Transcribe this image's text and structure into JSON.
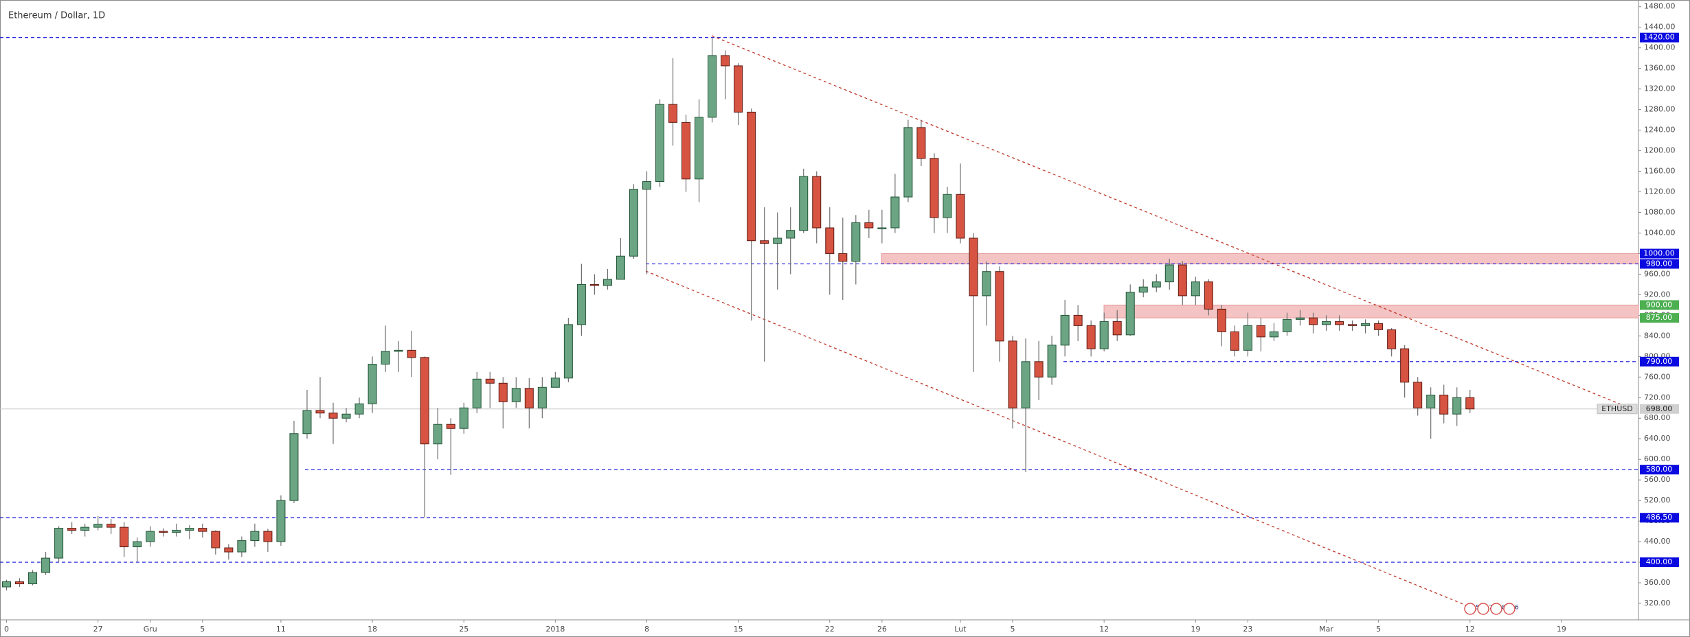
{
  "chart_data": {
    "type": "candlestick",
    "title": "Ethereum / Dollar, 1D",
    "categories": [
      "0",
      null,
      null,
      null,
      null,
      null,
      null,
      "27",
      null,
      null,
      null,
      "Gru",
      null,
      null,
      null,
      "5",
      null,
      null,
      null,
      null,
      null,
      "11",
      null,
      null,
      null,
      null,
      null,
      null,
      "18",
      null,
      null,
      null,
      null,
      null,
      null,
      "25",
      null,
      null,
      null,
      null,
      null,
      null,
      "2018",
      null,
      null,
      null,
      null,
      null,
      null,
      "8",
      null,
      null,
      null,
      null,
      null,
      null,
      "15",
      null,
      null,
      null,
      null,
      null,
      null,
      "22",
      null,
      null,
      null,
      "26",
      null,
      null,
      null,
      null,
      null,
      "Lut",
      null,
      null,
      null,
      "5",
      null,
      null,
      null,
      null,
      null,
      null,
      "12",
      null,
      null,
      null,
      null,
      null,
      null,
      "19",
      null,
      null,
      null,
      "23",
      null,
      null,
      null,
      null,
      null,
      "Mar",
      null,
      null,
      null,
      "5",
      null,
      null,
      null,
      null,
      null,
      null,
      "12",
      null,
      null,
      null,
      null,
      null,
      null,
      "19"
    ],
    "open": [
      352,
      362,
      358,
      380,
      408,
      466,
      462,
      468,
      474,
      468,
      430,
      440,
      460,
      458,
      462,
      466,
      460,
      428,
      420,
      442,
      460,
      440,
      520,
      650,
      695,
      690,
      680,
      688,
      708,
      785,
      810,
      812,
      798,
      630,
      668,
      660,
      700,
      756,
      748,
      712,
      738,
      700,
      740,
      758,
      862,
      940,
      938,
      950,
      995,
      1125,
      1140,
      1290,
      1255,
      1145,
      1265,
      1385,
      1365,
      1275,
      1025,
      1020,
      1030,
      1045,
      1150,
      1050,
      1000,
      985,
      1060,
      1050,
      1050,
      1110,
      1245,
      1185,
      1070,
      1115,
      1030,
      918,
      965,
      830,
      700,
      790,
      760,
      822,
      880,
      860,
      815,
      868,
      842,
      925,
      935,
      945,
      978,
      918,
      945,
      892,
      848,
      812,
      860,
      838,
      848,
      872,
      875,
      862,
      868,
      862,
      860,
      864,
      852,
      815,
      750,
      700,
      725,
      688,
      720,
      null,
      null,
      null,
      null,
      null,
      null,
      null
    ],
    "high": [
      366,
      369,
      385,
      420,
      470,
      478,
      475,
      490,
      484,
      478,
      448,
      470,
      466,
      475,
      472,
      475,
      462,
      435,
      450,
      475,
      465,
      530,
      675,
      735,
      760,
      710,
      700,
      720,
      800,
      860,
      830,
      850,
      800,
      700,
      680,
      710,
      770,
      770,
      760,
      760,
      758,
      760,
      770,
      875,
      980,
      960,
      970,
      1030,
      1135,
      1160,
      1300,
      1380,
      1270,
      1300,
      1420,
      1395,
      1370,
      1282,
      1090,
      1080,
      1090,
      1165,
      1160,
      1090,
      1070,
      1075,
      1085,
      1085,
      1155,
      1260,
      1260,
      1195,
      1130,
      1175,
      1040,
      985,
      975,
      840,
      835,
      830,
      840,
      910,
      900,
      870,
      885,
      890,
      940,
      950,
      960,
      990,
      985,
      955,
      950,
      900,
      860,
      885,
      875,
      865,
      885,
      890,
      885,
      880,
      880,
      870,
      872,
      870,
      855,
      822,
      760,
      740,
      745,
      740,
      735,
      null,
      null,
      null,
      null,
      null,
      null,
      null
    ],
    "low": [
      345,
      352,
      355,
      375,
      400,
      455,
      450,
      462,
      455,
      410,
      400,
      430,
      450,
      450,
      445,
      448,
      415,
      405,
      410,
      430,
      420,
      432,
      515,
      640,
      680,
      630,
      672,
      680,
      690,
      770,
      770,
      760,
      487,
      600,
      570,
      650,
      690,
      700,
      660,
      700,
      660,
      680,
      740,
      750,
      840,
      920,
      930,
      960,
      990,
      960,
      1130,
      1210,
      1120,
      1100,
      1255,
      1300,
      1250,
      870,
      790,
      930,
      960,
      1040,
      1020,
      920,
      910,
      940,
      1030,
      1020,
      1040,
      1100,
      1170,
      1040,
      1040,
      1020,
      770,
      860,
      790,
      660,
      575,
      715,
      745,
      800,
      830,
      800,
      810,
      830,
      840,
      915,
      925,
      930,
      900,
      900,
      880,
      820,
      800,
      800,
      810,
      830,
      840,
      860,
      845,
      850,
      850,
      850,
      845,
      840,
      800,
      720,
      685,
      640,
      670,
      665,
      690,
      null,
      null,
      null,
      null,
      null,
      null,
      null
    ],
    "close": [
      362,
      358,
      380,
      408,
      466,
      462,
      468,
      474,
      468,
      430,
      440,
      460,
      458,
      462,
      466,
      460,
      428,
      420,
      442,
      460,
      440,
      520,
      650,
      695,
      690,
      680,
      688,
      708,
      785,
      810,
      812,
      798,
      630,
      668,
      660,
      700,
      756,
      748,
      712,
      738,
      700,
      740,
      758,
      862,
      940,
      938,
      950,
      995,
      1125,
      1140,
      1290,
      1255,
      1145,
      1265,
      1385,
      1365,
      1275,
      1025,
      1020,
      1030,
      1045,
      1150,
      1050,
      1000,
      985,
      1060,
      1050,
      1050,
      1110,
      1245,
      1185,
      1070,
      1115,
      1030,
      918,
      965,
      830,
      700,
      790,
      760,
      822,
      880,
      860,
      815,
      868,
      842,
      925,
      935,
      945,
      978,
      918,
      945,
      892,
      848,
      812,
      860,
      838,
      848,
      872,
      875,
      862,
      868,
      862,
      860,
      864,
      852,
      815,
      750,
      700,
      725,
      688,
      720,
      698,
      null,
      null,
      null,
      null,
      null,
      null,
      null
    ],
    "up_color": "#6ba583",
    "down_color": "#d75442",
    "ylim": [
      288,
      1493
    ],
    "yticks": [
      {
        "value": 320,
        "label": "320.00"
      },
      {
        "value": 360,
        "label": "360.00"
      },
      {
        "value": 400,
        "label": "400.00"
      },
      {
        "value": 440,
        "label": "440.00"
      },
      {
        "value": 480,
        "label": "480.00"
      },
      {
        "value": 520,
        "label": "520.00"
      },
      {
        "value": 560,
        "label": "560.00"
      },
      {
        "value": 600,
        "label": "600.00"
      },
      {
        "value": 640,
        "label": "640.00"
      },
      {
        "value": 680,
        "label": "680.00"
      },
      {
        "value": 720,
        "label": "720.00"
      },
      {
        "value": 760,
        "label": "760.00"
      },
      {
        "value": 800,
        "label": "800.00"
      },
      {
        "value": 840,
        "label": "840.00"
      },
      {
        "value": 880,
        "label": "880.00"
      },
      {
        "value": 920,
        "label": "920.00"
      },
      {
        "value": 960,
        "label": "960.00"
      },
      {
        "value": 1000,
        "label": "1000.00"
      },
      {
        "value": 1040,
        "label": "1040.00"
      },
      {
        "value": 1080,
        "label": "1080.00"
      },
      {
        "value": 1120,
        "label": "1120.00"
      },
      {
        "value": 1160,
        "label": "1160.00"
      },
      {
        "value": 1200,
        "label": "1200.00"
      },
      {
        "value": 1240,
        "label": "1240.00"
      },
      {
        "value": 1280,
        "label": "1280.00"
      },
      {
        "value": 1320,
        "label": "1320.00"
      },
      {
        "value": 1360,
        "label": "1360.00"
      },
      {
        "value": 1400,
        "label": "1400.00"
      },
      {
        "value": 1440,
        "label": "1440.00"
      },
      {
        "value": 1480,
        "label": "1480.00"
      }
    ],
    "levels": [
      {
        "value": 1420,
        "label": "1420.00",
        "color": "#0a0ae0",
        "dashed": true
      },
      {
        "value": 1000,
        "label": "1000.00",
        "color": "#0a0ae0",
        "dashed": false
      },
      {
        "value": 980,
        "label": "980.00",
        "color": "#0a0ae0",
        "dashed": true
      },
      {
        "value": 900,
        "label": "900.00",
        "color": "#4caf50",
        "dashed": false
      },
      {
        "value": 875,
        "label": "875.00",
        "color": "#4caf50",
        "dashed": false
      },
      {
        "value": 790,
        "label": "790.00",
        "color": "#0a0ae0",
        "dashed": true
      },
      {
        "value": 580,
        "label": "580.00",
        "color": "#0a0ae0",
        "dashed": true
      },
      {
        "value": 486.5,
        "label": "486.50",
        "color": "#0a0ae0",
        "dashed": true
      },
      {
        "value": 400,
        "label": "400.00",
        "color": "#0a0ae0",
        "dashed": true
      }
    ],
    "zones": [
      {
        "from": 980,
        "to": 1000,
        "color": "#f2b8b8"
      },
      {
        "from": 875,
        "to": 900,
        "color": "#f2b8b8"
      }
    ],
    "last": {
      "name": "ETHUSD",
      "value": 698,
      "label": "698.00"
    },
    "events": [
      "5",
      "7",
      "8",
      "6"
    ]
  }
}
